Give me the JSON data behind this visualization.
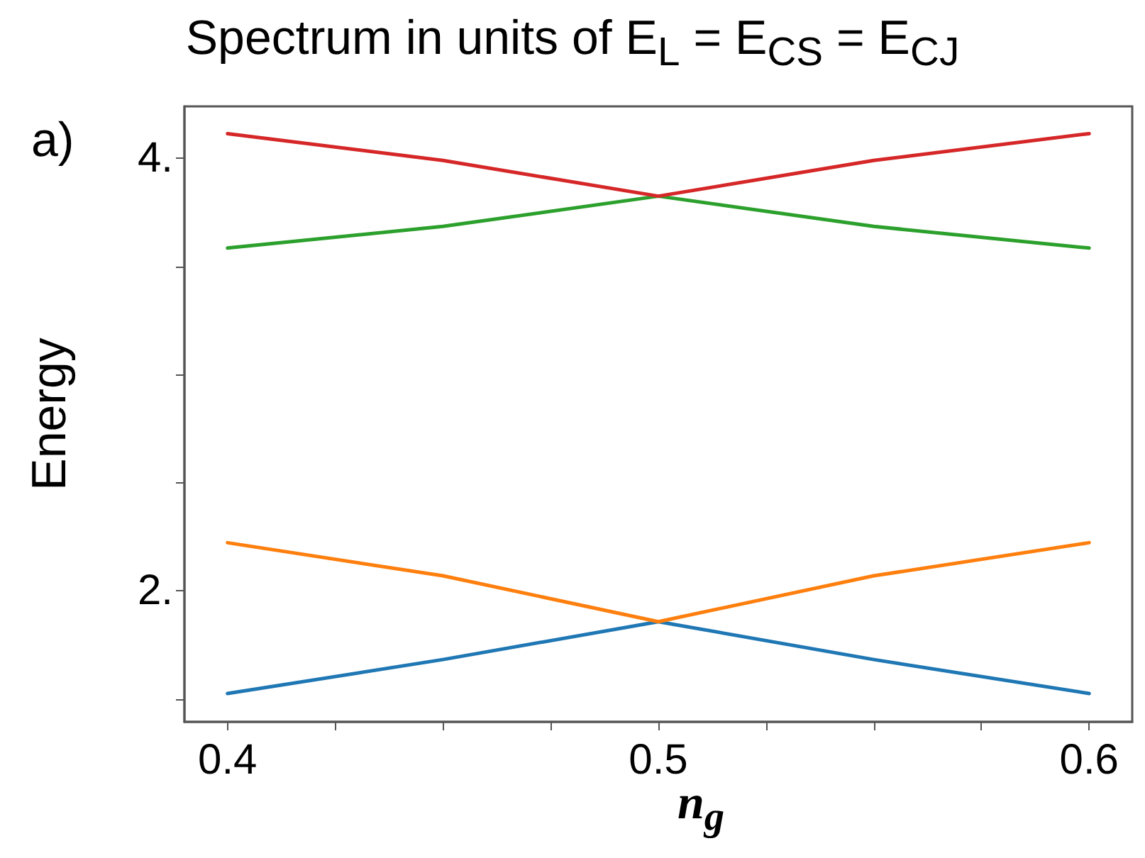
{
  "chart_data": {
    "type": "line",
    "title": "Spectrum in units of E$_{L}$ = E$_{CS}$ = E$_{CJ}$",
    "xlabel": "n$_{g}$",
    "ylabel": "Energy",
    "annotations": [
      "a)"
    ],
    "x": [
      0.4,
      0.45,
      0.5,
      0.55,
      0.6
    ],
    "series": [
      {
        "color": "#1f77b4",
        "values": [
          1.526,
          1.683,
          1.858,
          1.683,
          1.526
        ]
      },
      {
        "color": "#ff7f0e",
        "values": [
          2.223,
          2.07,
          1.858,
          2.07,
          2.223
        ]
      },
      {
        "color": "#2ca02c",
        "values": [
          3.585,
          3.685,
          3.825,
          3.685,
          3.585
        ]
      },
      {
        "color": "#d62728",
        "values": [
          4.114,
          3.99,
          3.825,
          3.99,
          4.114
        ]
      }
    ],
    "xlim": [
      0.39,
      0.61
    ],
    "ylim": [
      1.395,
      4.24
    ],
    "xticks": [
      0.4,
      {
        "value": 0.425,
        "label": null
      },
      {
        "value": 0.45,
        "label": null
      },
      {
        "value": 0.475,
        "label": null
      },
      0.5,
      {
        "value": 0.525,
        "label": null
      },
      {
        "value": 0.55,
        "label": null
      },
      {
        "value": 0.575,
        "label": null
      },
      0.6
    ],
    "yticks": [
      {
        "value": 1.5,
        "label": null
      },
      {
        "value": 2,
        "label": "2."
      },
      {
        "value": 2.5,
        "label": null
      },
      {
        "value": 3,
        "label": null
      },
      {
        "value": 3.5,
        "label": null
      },
      {
        "value": 4,
        "label": "4."
      }
    ],
    "grid": false,
    "marker": "none",
    "line_style": "solid"
  }
}
